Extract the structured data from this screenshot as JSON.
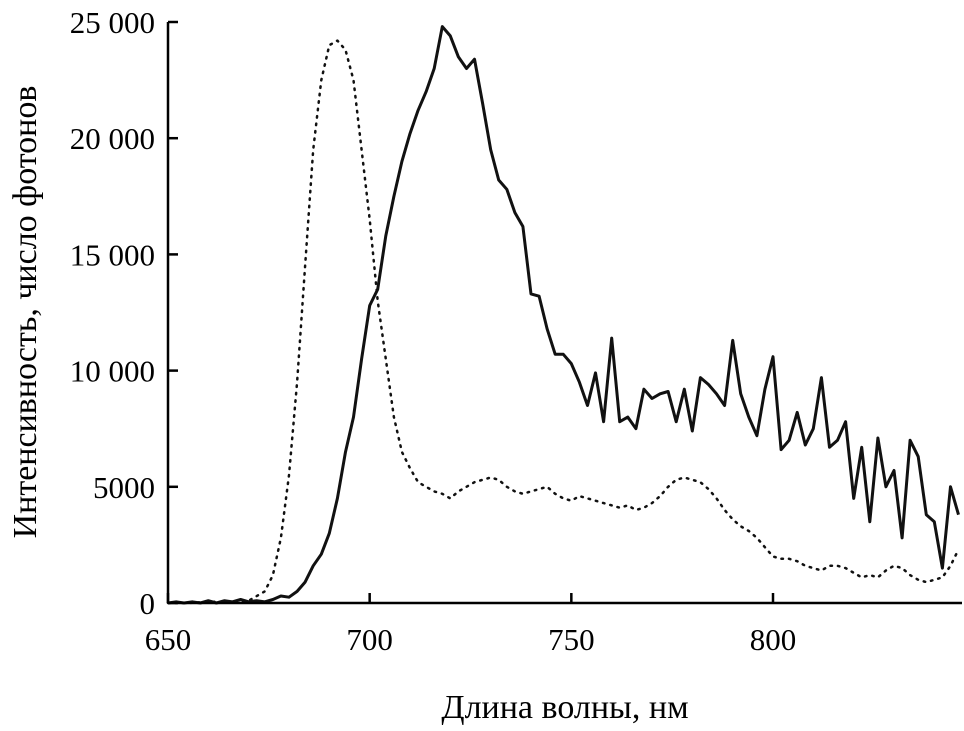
{
  "chart_data": {
    "type": "line",
    "title": "",
    "xlabel": "Длина волны, нм",
    "ylabel": "Интенсивность, число фотонов",
    "xlim": [
      650,
      847
    ],
    "ylim": [
      0,
      25000
    ],
    "x_ticks": [
      650,
      700,
      750,
      800
    ],
    "y_ticks": [
      0,
      5000,
      10000,
      15000,
      20000,
      25000
    ],
    "x_tick_labels": [
      "650",
      "700",
      "750",
      "800"
    ],
    "y_tick_labels": [
      "0",
      "5000",
      "10 000",
      "15 000",
      "20 000",
      "25 000"
    ],
    "grid": false,
    "legend": "none",
    "series": [
      {
        "style": "solid",
        "color": "#111111",
        "x": [
          650,
          652,
          654,
          656,
          658,
          660,
          662,
          664,
          666,
          668,
          670,
          672,
          674,
          676,
          678,
          680,
          682,
          684,
          686,
          688,
          690,
          692,
          694,
          696,
          698,
          700,
          702,
          704,
          706,
          708,
          710,
          712,
          714,
          716,
          718,
          720,
          722,
          724,
          726,
          728,
          730,
          732,
          734,
          736,
          738,
          740,
          742,
          744,
          746,
          748,
          750,
          752,
          754,
          756,
          758,
          760,
          762,
          764,
          766,
          768,
          770,
          772,
          774,
          776,
          778,
          780,
          782,
          784,
          786,
          788,
          790,
          792,
          794,
          796,
          798,
          800,
          802,
          804,
          806,
          808,
          810,
          812,
          814,
          816,
          818,
          820,
          822,
          824,
          826,
          828,
          830,
          832,
          834,
          836,
          838,
          840,
          842,
          844,
          846
        ],
        "y": [
          0,
          50,
          0,
          50,
          0,
          100,
          0,
          100,
          50,
          150,
          50,
          100,
          50,
          150,
          300,
          250,
          500,
          900,
          1600,
          2100,
          3000,
          4500,
          6500,
          8000,
          10500,
          12800,
          13500,
          15800,
          17500,
          19000,
          20200,
          21200,
          22000,
          23000,
          24800,
          24400,
          23500,
          23000,
          23400,
          21500,
          19500,
          18200,
          17800,
          16800,
          16200,
          13300,
          13200,
          11800,
          10700,
          10700,
          10300,
          9500,
          8500,
          9900,
          7800,
          11400,
          7800,
          8000,
          7500,
          9200,
          8800,
          9000,
          9100,
          7800,
          9200,
          7400,
          9700,
          9400,
          9000,
          8500,
          11300,
          9000,
          8000,
          7200,
          9200,
          10600,
          6600,
          7000,
          8200,
          6800,
          7500,
          9700,
          6700,
          7000,
          7800,
          4500,
          6700,
          3500,
          7100,
          5000,
          5700,
          2800,
          7000,
          6300,
          3800,
          3500,
          1500,
          5000,
          3800
        ]
      },
      {
        "style": "dotted",
        "color": "#111111",
        "x": [
          650,
          655,
          660,
          665,
          670,
          674,
          676,
          678,
          680,
          682,
          684,
          686,
          688,
          690,
          692,
          694,
          696,
          698,
          700,
          702,
          704,
          706,
          708,
          710,
          712,
          714,
          716,
          718,
          720,
          722,
          724,
          726,
          728,
          730,
          732,
          734,
          736,
          738,
          740,
          742,
          744,
          746,
          748,
          750,
          752,
          754,
          756,
          758,
          760,
          762,
          764,
          766,
          768,
          770,
          772,
          774,
          776,
          778,
          780,
          782,
          784,
          786,
          788,
          790,
          792,
          794,
          796,
          798,
          800,
          802,
          804,
          806,
          808,
          810,
          812,
          814,
          816,
          818,
          820,
          822,
          824,
          826,
          828,
          830,
          832,
          834,
          836,
          838,
          840,
          842,
          844,
          846
        ],
        "y": [
          0,
          0,
          50,
          50,
          100,
          500,
          1200,
          2800,
          5500,
          9500,
          14500,
          19500,
          22500,
          24000,
          24200,
          23800,
          22500,
          19500,
          16500,
          13000,
          10500,
          8000,
          6500,
          5800,
          5200,
          5000,
          4800,
          4700,
          4500,
          4800,
          5000,
          5200,
          5300,
          5400,
          5300,
          5000,
          4800,
          4700,
          4800,
          4900,
          5000,
          4700,
          4500,
          4400,
          4600,
          4500,
          4400,
          4300,
          4200,
          4100,
          4200,
          4000,
          4100,
          4300,
          4600,
          5000,
          5300,
          5400,
          5300,
          5200,
          4900,
          4500,
          4000,
          3600,
          3300,
          3100,
          2800,
          2400,
          2000,
          1900,
          1900,
          1800,
          1600,
          1500,
          1400,
          1600,
          1600,
          1500,
          1300,
          1100,
          1200,
          1100,
          1400,
          1600,
          1500,
          1200,
          1000,
          900,
          1000,
          1100,
          1600,
          2300
        ]
      }
    ]
  }
}
